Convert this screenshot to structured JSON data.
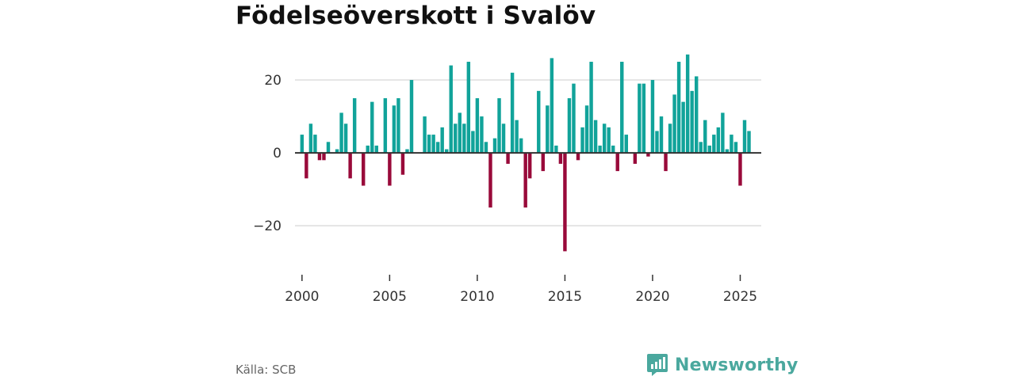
{
  "header": {
    "title": "Födelseöverskott i Svalöv"
  },
  "footer": {
    "source": "Källa: SCB",
    "brand": "Newsworthy"
  },
  "colors": {
    "positive": "#11a39a",
    "negative": "#990a3a",
    "grid": "#dddddd",
    "axis": "#333333",
    "brand": "#4aa89e"
  },
  "chart_data": {
    "type": "bar",
    "title": "Födelseöverskott i Svalöv",
    "xlabel": "",
    "ylabel": "",
    "x_unit": "quarter",
    "x_start": "2000 Q1",
    "xlim": [
      1999.6,
      2026.2
    ],
    "ylim": [
      -33,
      30
    ],
    "yticks": [
      -20,
      0,
      20
    ],
    "ytick_labels": [
      "−20",
      "0",
      "20"
    ],
    "xticks": [
      2000,
      2005,
      2010,
      2015,
      2020,
      2025
    ],
    "xtick_labels": [
      "2000",
      "2005",
      "2010",
      "2015",
      "2020",
      "2025"
    ],
    "grid": true,
    "values": [
      5,
      -7,
      8,
      5,
      -2,
      -2,
      3,
      0,
      1,
      11,
      8,
      -7,
      15,
      0,
      -9,
      2,
      14,
      2,
      0,
      15,
      -9,
      13,
      15,
      -6,
      1,
      20,
      0,
      0,
      10,
      5,
      5,
      3,
      7,
      1,
      24,
      8,
      11,
      8,
      25,
      6,
      15,
      10,
      3,
      -15,
      4,
      15,
      8,
      -3,
      22,
      9,
      4,
      -15,
      -7,
      0,
      17,
      -5,
      13,
      26,
      2,
      -3,
      -27,
      15,
      19,
      -2,
      7,
      13,
      25,
      9,
      2,
      8,
      7,
      2,
      -5,
      25,
      5,
      0,
      -3,
      19,
      19,
      -1,
      20,
      6,
      10,
      -5,
      8,
      16,
      25,
      14,
      27,
      17,
      21,
      3,
      9,
      2,
      5,
      7,
      11,
      1,
      5,
      3,
      -9,
      9,
      6
    ]
  }
}
